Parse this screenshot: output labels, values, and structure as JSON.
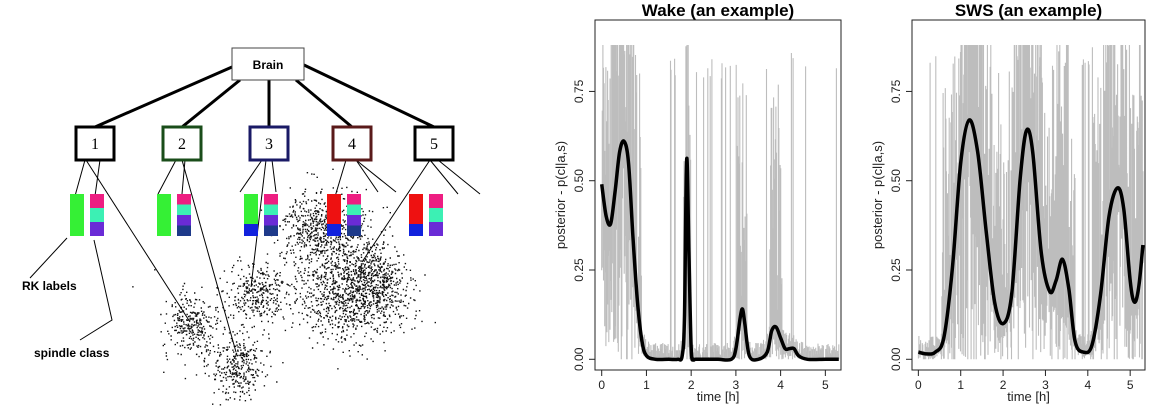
{
  "tree": {
    "root_label": "Brain",
    "clusters": [
      {
        "label": "1",
        "color": "#000000",
        "bars": [
          [
            "#35f035"
          ],
          [
            "#ee1e82",
            "#3cf0b4",
            "#6a2bd6"
          ]
        ]
      },
      {
        "label": "2",
        "color": "#1a4d1a",
        "bars": [
          [
            "#35f035"
          ],
          [
            "#ee1e82",
            "#3cf0b4",
            "#6a2bd6",
            "#1e3a8a"
          ]
        ]
      },
      {
        "label": "3",
        "color": "#1a1a66",
        "bars": [
          [
            "#35f035",
            "#1122dd"
          ],
          [
            "#ee1e82",
            "#3cf0b4",
            "#6a2bd6",
            "#1e3a8a"
          ]
        ]
      },
      {
        "label": "4",
        "color": "#5a1a1a",
        "bars": [
          [
            "#ee1111",
            "#1122dd"
          ],
          [
            "#ee1e82",
            "#3cf0b4",
            "#6a2bd6",
            "#1e3a8a"
          ]
        ]
      },
      {
        "label": "5",
        "color": "#000000",
        "bars": [
          [
            "#ee1111",
            "#1122dd"
          ],
          [
            "#ee1e82",
            "#3cf0b4",
            "#6a2bd6"
          ]
        ]
      }
    ],
    "annotations": {
      "rk": "RK labels",
      "spindle": "spindle class"
    }
  },
  "chart_data": [
    {
      "type": "line",
      "title": "Wake (an example)",
      "xlabel": "time [h]",
      "ylabel": "posterior - p(cl|a,s)",
      "xlim": [
        -0.15,
        5.35
      ],
      "ylim": [
        -0.03,
        0.95
      ],
      "xticks": [
        "0",
        "1",
        "2",
        "3",
        "4",
        "5"
      ],
      "yticks": [
        "0.00",
        "0.25",
        "0.50",
        "0.75"
      ],
      "grid": false,
      "series": [
        {
          "color": "#000000",
          "x": [
            0,
            0.1,
            0.2,
            0.3,
            0.4,
            0.5,
            0.6,
            0.7,
            0.8,
            0.9,
            1.0,
            1.2,
            1.5,
            1.7,
            1.8,
            1.85,
            1.9,
            1.95,
            2.0,
            2.05,
            2.1,
            2.3,
            2.6,
            2.9,
            3.0,
            3.1,
            3.15,
            3.2,
            3.3,
            3.5,
            3.7,
            3.8,
            3.9,
            4.0,
            4.1,
            4.2,
            4.3,
            4.4,
            4.6,
            5.0,
            5.3
          ],
          "values": [
            0.49,
            0.4,
            0.38,
            0.47,
            0.58,
            0.61,
            0.55,
            0.34,
            0.16,
            0.05,
            0.01,
            0.0,
            0.0,
            0.0,
            0.01,
            0.12,
            0.56,
            0.3,
            0.03,
            0.0,
            0.0,
            0.0,
            0.0,
            0.0,
            0.03,
            0.12,
            0.14,
            0.1,
            0.01,
            0.0,
            0.02,
            0.08,
            0.09,
            0.06,
            0.03,
            0.03,
            0.03,
            0.01,
            0.0,
            0.0,
            0.0
          ]
        }
      ]
    },
    {
      "type": "line",
      "title": "SWS (an example)",
      "xlabel": "time [h]",
      "ylabel": "posterior - p(cl|a,s)",
      "xlim": [
        -0.15,
        5.35
      ],
      "ylim": [
        -0.03,
        0.95
      ],
      "xticks": [
        "0",
        "1",
        "2",
        "3",
        "4",
        "5"
      ],
      "yticks": [
        "0.00",
        "0.25",
        "0.50",
        "0.75"
      ],
      "grid": false,
      "series": [
        {
          "color": "#000000",
          "x": [
            0,
            0.2,
            0.4,
            0.6,
            0.8,
            1.0,
            1.2,
            1.4,
            1.6,
            1.8,
            2.0,
            2.2,
            2.4,
            2.55,
            2.7,
            2.9,
            3.1,
            3.25,
            3.4,
            3.55,
            3.7,
            3.9,
            4.1,
            4.3,
            4.5,
            4.7,
            4.85,
            5.0,
            5.1,
            5.2,
            5.3
          ],
          "values": [
            0.02,
            0.015,
            0.02,
            0.06,
            0.25,
            0.55,
            0.67,
            0.58,
            0.36,
            0.16,
            0.1,
            0.18,
            0.5,
            0.64,
            0.58,
            0.3,
            0.19,
            0.22,
            0.28,
            0.2,
            0.05,
            0.02,
            0.04,
            0.18,
            0.4,
            0.48,
            0.42,
            0.22,
            0.16,
            0.2,
            0.32
          ]
        }
      ]
    }
  ]
}
